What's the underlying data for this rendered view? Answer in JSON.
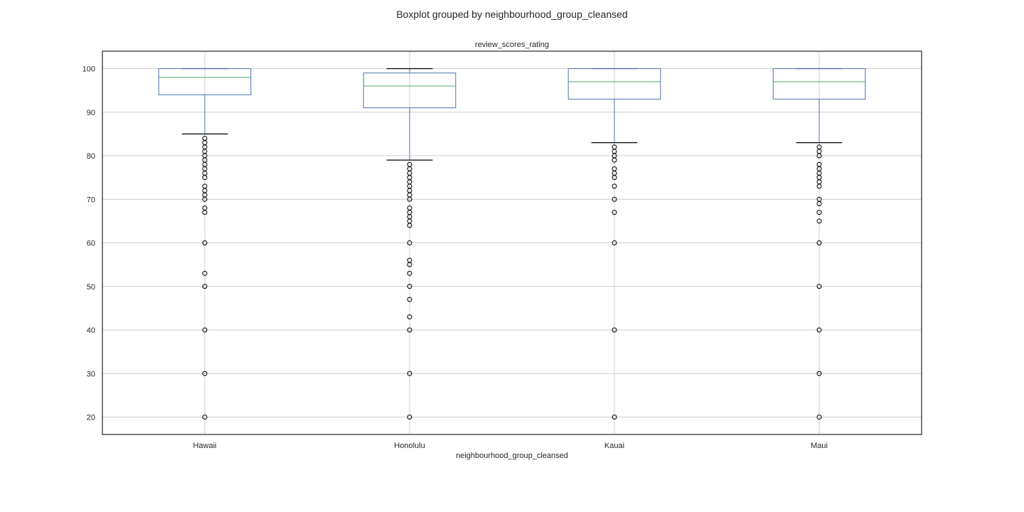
{
  "figure": {
    "suptitle": "Boxplot grouped by neighbourhood_group_cleansed"
  },
  "chart_data": {
    "type": "box",
    "title": "review_scores_rating",
    "xlabel": "neighbourhood_group_cleansed",
    "ylabel": "",
    "ylim": [
      16,
      104
    ],
    "yticks": [
      20,
      30,
      40,
      50,
      60,
      70,
      80,
      90,
      100
    ],
    "grid": true,
    "legend": "none",
    "colors": {
      "box": "#4c72b0",
      "median": "#55a868",
      "cap": "#000000",
      "flier": "#000000",
      "grid": "#cccccc"
    },
    "categories": [
      "Hawaii",
      "Honolulu",
      "Kauai",
      "Maui"
    ],
    "boxes": [
      {
        "name": "Hawaii",
        "q1": 94,
        "median": 98,
        "q3": 100,
        "whisker_low": 85,
        "whisker_high": 100,
        "fliers": [
          84,
          83,
          82,
          81,
          80,
          79,
          78,
          77,
          76,
          75,
          73,
          72,
          71,
          70,
          68,
          67,
          60,
          53,
          50,
          40,
          30,
          20
        ]
      },
      {
        "name": "Honolulu",
        "q1": 91,
        "median": 96,
        "q3": 99,
        "whisker_low": 79,
        "whisker_high": 100,
        "fliers": [
          78,
          77,
          76,
          75,
          74,
          73,
          72,
          71,
          70,
          68,
          67,
          66,
          65,
          64,
          60,
          56,
          55,
          53,
          50,
          47,
          43,
          40,
          30,
          20
        ]
      },
      {
        "name": "Kauai",
        "q1": 93,
        "median": 97,
        "q3": 100,
        "whisker_low": 83,
        "whisker_high": 100,
        "fliers": [
          82,
          81,
          80,
          79,
          77,
          76,
          75,
          73,
          70,
          67,
          60,
          40,
          20
        ]
      },
      {
        "name": "Maui",
        "q1": 93,
        "median": 97,
        "q3": 100,
        "whisker_low": 83,
        "whisker_high": 100,
        "fliers": [
          82,
          81,
          80,
          78,
          77,
          76,
          75,
          74,
          73,
          70,
          69,
          67,
          65,
          60,
          50,
          40,
          30,
          20
        ]
      }
    ]
  }
}
